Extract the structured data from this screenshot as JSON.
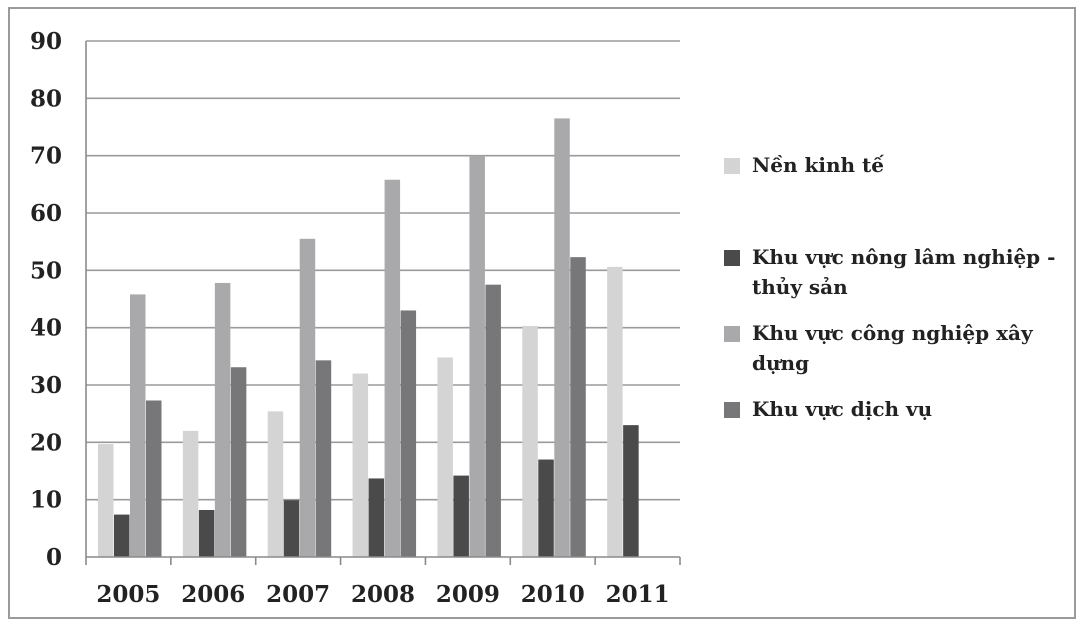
{
  "chart_data": {
    "type": "bar",
    "title": "",
    "xlabel": "",
    "ylabel": "",
    "categories": [
      "2005",
      "2006",
      "2007",
      "2008",
      "2009",
      "2010",
      "2011"
    ],
    "ylim": [
      0,
      90
    ],
    "yticks": [
      0,
      10,
      20,
      30,
      40,
      50,
      60,
      70,
      80,
      90
    ],
    "grid": true,
    "legend_position": "right",
    "series": [
      {
        "name": "Nền kinh tế",
        "color": "#d4d4d4",
        "values": [
          19.7,
          22.0,
          25.4,
          32.0,
          34.8,
          40.3,
          50.6
        ]
      },
      {
        "name": "Khu vực nông lâm nghiệp - thủy sản",
        "color": "#4a4a4a",
        "values": [
          7.4,
          8.2,
          9.9,
          13.7,
          14.2,
          17.0,
          23.0
        ]
      },
      {
        "name": "Khu vực công nghiệp xây dựng",
        "color": "#a9a9ac",
        "values": [
          45.8,
          47.8,
          55.5,
          65.8,
          70.0,
          76.5,
          null
        ]
      },
      {
        "name": "Khu vực dịch vụ",
        "color": "#77777a",
        "values": [
          27.3,
          33.1,
          34.3,
          43.0,
          47.5,
          52.3,
          null
        ]
      }
    ]
  }
}
